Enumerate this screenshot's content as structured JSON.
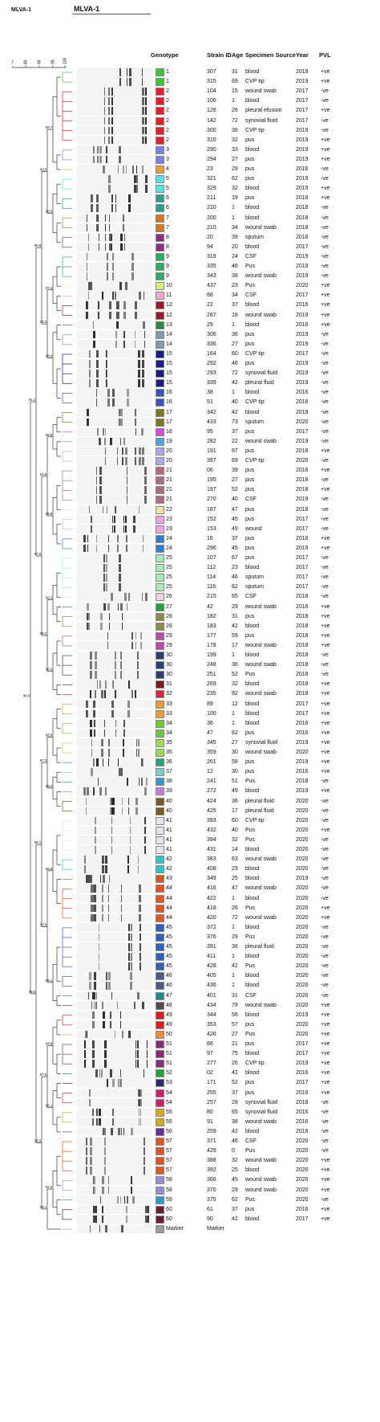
{
  "title_left": "MLVA-1",
  "title_main": "MLVA-1",
  "scale_ticks": [
    "70",
    "80",
    "90",
    "95",
    "100"
  ],
  "headers": {
    "genotype": "Genotype",
    "strain": "Strain ID",
    "age": "Age",
    "source": "Specimen Source",
    "year": "Year",
    "pvl": "PVL"
  },
  "node_labels": [
    {
      "text": "99.7"
    },
    {
      "text": "98.5"
    },
    {
      "text": "87.4"
    },
    {
      "text": "98.4"
    },
    {
      "text": "98.9"
    },
    {
      "text": "86.8"
    },
    {
      "text": "99.3"
    },
    {
      "text": "96.6"
    },
    {
      "text": "96.9"
    },
    {
      "text": "98.2"
    },
    {
      "text": "99.0"
    },
    {
      "text": "89.1"
    },
    {
      "text": "94.8"
    },
    {
      "text": "96.1"
    },
    {
      "text": "92.2"
    },
    {
      "text": "99.0"
    },
    {
      "text": "93.2"
    },
    {
      "text": "94.6"
    },
    {
      "text": "98.2"
    },
    {
      "text": "97.3"
    },
    {
      "text": "93.9"
    },
    {
      "text": "97.5"
    },
    {
      "text": "95.1"
    },
    {
      "text": "95.8"
    },
    {
      "text": "97.9"
    },
    {
      "text": "96.1"
    },
    {
      "text": "96.9"
    },
    {
      "text": "91.1"
    },
    {
      "text": "98.0"
    },
    {
      "text": "96.0"
    },
    {
      "text": "99.5"
    },
    {
      "text": "96.6"
    },
    {
      "text": "99.6"
    },
    {
      "text": "91.5"
    },
    {
      "text": "94.5"
    },
    {
      "text": "98.0"
    },
    {
      "text": "93.8"
    },
    {
      "text": "91.2"
    },
    {
      "text": "95.2"
    }
  ],
  "rows": [
    {
      "g": "1",
      "sid": "307",
      "age": "31",
      "src": "blood",
      "yr": "2019",
      "pvl": "+ve",
      "c": "#39c831"
    },
    {
      "g": "1",
      "sid": "315",
      "age": "69",
      "src": "CVP tip",
      "yr": "2019",
      "pvl": "+ve",
      "c": "#39c831"
    },
    {
      "g": "2",
      "sid": "104",
      "age": "15",
      "src": "wound swab",
      "yr": "2017",
      "pvl": "-ve",
      "c": "#ee1b2b"
    },
    {
      "g": "2",
      "sid": "106",
      "age": "1",
      "src": "blood",
      "yr": "2017",
      "pvl": "-ve",
      "c": "#ee1b2b"
    },
    {
      "g": "2",
      "sid": "126",
      "age": "26",
      "src": "pleural efusion",
      "yr": "2017",
      "pvl": "+ve",
      "c": "#ee1b2b"
    },
    {
      "g": "2",
      "sid": "142",
      "age": "72",
      "src": "synovial fluid",
      "yr": "2017",
      "pvl": "-ve",
      "c": "#ee1b2b"
    },
    {
      "g": "2",
      "sid": "300",
      "age": "36",
      "src": "CVP tip",
      "yr": "2019",
      "pvl": "-ve",
      "c": "#ee1b2b"
    },
    {
      "g": "2",
      "sid": "310",
      "age": "32",
      "src": "pus",
      "yr": "2019",
      "pvl": "+ve",
      "c": "#ee1b2b"
    },
    {
      "g": "3",
      "sid": "290",
      "age": "33",
      "src": "blood",
      "yr": "2019",
      "pvl": "+ve",
      "c": "#7b7fe8"
    },
    {
      "g": "3",
      "sid": "294",
      "age": "27",
      "src": "pus",
      "yr": "2019",
      "pvl": "+ve",
      "c": "#7b7fe8"
    },
    {
      "g": "4",
      "sid": "23",
      "age": "29",
      "src": "pus",
      "yr": "2016",
      "pvl": "-ve",
      "c": "#f29a30"
    },
    {
      "g": "5",
      "sid": "321",
      "age": "62",
      "src": "pus",
      "yr": "2019",
      "pvl": "-ve",
      "c": "#4fe6e8"
    },
    {
      "g": "5",
      "sid": "329",
      "age": "32",
      "src": "blood",
      "yr": "2019",
      "pvl": "+ve",
      "c": "#4fe6e8"
    },
    {
      "g": "6",
      "sid": "211",
      "age": "19",
      "src": "pus",
      "yr": "2018",
      "pvl": "+ve",
      "c": "#1fa393"
    },
    {
      "g": "6",
      "sid": "220",
      "age": "1",
      "src": "blood",
      "yr": "2018",
      "pvl": "-ve",
      "c": "#1fa393"
    },
    {
      "g": "7",
      "sid": "200",
      "age": "1",
      "src": "blood",
      "yr": "2018",
      "pvl": "-ve",
      "c": "#d9751f"
    },
    {
      "g": "7",
      "sid": "210",
      "age": "34",
      "src": "wound swab",
      "yr": "2018",
      "pvl": "-ve",
      "c": "#d9751f"
    },
    {
      "g": "8",
      "sid": "20",
      "age": "39",
      "src": "sputum",
      "yr": "2016",
      "pvl": "-ve",
      "c": "#8e2a82"
    },
    {
      "g": "8",
      "sid": "94",
      "age": "20",
      "src": "blood",
      "yr": "2017",
      "pvl": "-ve",
      "c": "#8e2a82"
    },
    {
      "g": "9",
      "sid": "319",
      "age": "24",
      "src": "CSF",
      "yr": "2019",
      "pvl": "-ve",
      "c": "#2fae63"
    },
    {
      "g": "9",
      "sid": "335",
      "age": "46",
      "src": "Pus",
      "yr": "2019",
      "pvl": "-ve",
      "c": "#2fae63"
    },
    {
      "g": "9",
      "sid": "343",
      "age": "38",
      "src": "wound swab",
      "yr": "2019",
      "pvl": "-ve",
      "c": "#2fae63"
    },
    {
      "g": "10",
      "sid": "437",
      "age": "23",
      "src": "Pus",
      "yr": "2020",
      "pvl": "+ve",
      "c": "#d6ef7a"
    },
    {
      "g": "11",
      "sid": "88",
      "age": "34",
      "src": "CSF",
      "yr": "2017",
      "pvl": "+ve",
      "c": "#f3a6d2"
    },
    {
      "g": "12",
      "sid": "22",
      "age": "37",
      "src": "blood",
      "yr": "2016",
      "pvl": "+ve",
      "c": "#a3162e"
    },
    {
      "g": "12",
      "sid": "287",
      "age": "18",
      "src": "wound swab",
      "yr": "2019",
      "pvl": "+ve",
      "c": "#a3162e"
    },
    {
      "g": "13",
      "sid": "29",
      "age": "1",
      "src": "blood",
      "yr": "2016",
      "pvl": "+ve",
      "c": "#2b8a3e"
    },
    {
      "g": "14",
      "sid": "306",
      "age": "36",
      "src": "pus",
      "yr": "2019",
      "pvl": "-ve",
      "c": "#7f9aaa"
    },
    {
      "g": "14",
      "sid": "336",
      "age": "27",
      "src": "pus",
      "yr": "2019",
      "pvl": "-ve",
      "c": "#7f9aaa"
    },
    {
      "g": "15",
      "sid": "164",
      "age": "60",
      "src": "CVP tip",
      "yr": "2017",
      "pvl": "-ve",
      "c": "#1a1a8c"
    },
    {
      "g": "15",
      "sid": "292",
      "age": "46",
      "src": "pus",
      "yr": "2019",
      "pvl": "-ve",
      "c": "#1a1a8c"
    },
    {
      "g": "15",
      "sid": "293",
      "age": "72",
      "src": "synovial fluid",
      "yr": "2019",
      "pvl": "-ve",
      "c": "#1a1a8c"
    },
    {
      "g": "15",
      "sid": "339",
      "age": "42",
      "src": "pleural fluid",
      "yr": "2019",
      "pvl": "-ve",
      "c": "#1a1a8c"
    },
    {
      "g": "16",
      "sid": "38",
      "age": "1",
      "src": "blood",
      "yr": "2016",
      "pvl": "-ve",
      "c": "#3a53c9"
    },
    {
      "g": "16",
      "sid": "51",
      "age": "40",
      "src": "CVP tip",
      "yr": "2016",
      "pvl": "-ve",
      "c": "#3a53c9"
    },
    {
      "g": "17",
      "sid": "342",
      "age": "42",
      "src": "blood",
      "yr": "2019",
      "pvl": "-ve",
      "c": "#7a7a1c"
    },
    {
      "g": "17",
      "sid": "433",
      "age": "73",
      "src": "sputum",
      "yr": "2020",
      "pvl": "-ve",
      "c": "#7a7a1c"
    },
    {
      "g": "18",
      "sid": "95",
      "age": "37",
      "src": "pus",
      "yr": "2017",
      "pvl": "-ve",
      "c": "#d84bd8"
    },
    {
      "g": "19",
      "sid": "282",
      "age": "22",
      "src": "wound swab",
      "yr": "2019",
      "pvl": "-ve",
      "c": "#49a6e0"
    },
    {
      "g": "20",
      "sid": "191",
      "age": "67",
      "src": "pus",
      "yr": "2018",
      "pvl": "+ve",
      "c": "#a9a9f0"
    },
    {
      "g": "20",
      "sid": "397",
      "age": "69",
      "src": "CVP tip",
      "yr": "2020",
      "pvl": "-ve",
      "c": "#a9a9f0"
    },
    {
      "g": "21",
      "sid": "06",
      "age": "39",
      "src": "pus",
      "yr": "2016",
      "pvl": "+ve",
      "c": "#b56a7a"
    },
    {
      "g": "21",
      "sid": "195",
      "age": "27",
      "src": "pus",
      "yr": "2018",
      "pvl": "-ve",
      "c": "#b56a7a"
    },
    {
      "g": "21",
      "sid": "197",
      "age": "52",
      "src": "pus",
      "yr": "2018",
      "pvl": "+ve",
      "c": "#b56a7a"
    },
    {
      "g": "21",
      "sid": "270",
      "age": "40",
      "src": "CSF",
      "yr": "2019",
      "pvl": "-ve",
      "c": "#b56a7a"
    },
    {
      "g": "22",
      "sid": "187",
      "age": "47",
      "src": "pus",
      "yr": "2018",
      "pvl": "-ve",
      "c": "#f0e2a0"
    },
    {
      "g": "23",
      "sid": "152",
      "age": "45",
      "src": "pus",
      "yr": "2017",
      "pvl": "-ve",
      "c": "#f2a0e8"
    },
    {
      "g": "23",
      "sid": "153",
      "age": "49",
      "src": "wound",
      "yr": "2017",
      "pvl": "-ve",
      "c": "#f2a0e8"
    },
    {
      "g": "24",
      "sid": "16",
      "age": "37",
      "src": "pus",
      "yr": "2016",
      "pvl": "+ve",
      "c": "#2f7fd6"
    },
    {
      "g": "24",
      "sid": "296",
      "age": "45",
      "src": "pus",
      "yr": "2019",
      "pvl": "+ve",
      "c": "#2f7fd6"
    },
    {
      "g": "25",
      "sid": "107",
      "age": "67",
      "src": "pus",
      "yr": "2017",
      "pvl": "-ve",
      "c": "#a6ecb9"
    },
    {
      "g": "25",
      "sid": "112",
      "age": "23",
      "src": "blood",
      "yr": "2017",
      "pvl": "-ve",
      "c": "#a6ecb9"
    },
    {
      "g": "25",
      "sid": "114",
      "age": "46",
      "src": "sputum",
      "yr": "2017",
      "pvl": "-ve",
      "c": "#a6ecb9"
    },
    {
      "g": "25",
      "sid": "116",
      "age": "62",
      "src": "sputum",
      "yr": "2017",
      "pvl": "-ve",
      "c": "#a6ecb9"
    },
    {
      "g": "26",
      "sid": "215",
      "age": "65",
      "src": "CSF",
      "yr": "2018",
      "pvl": "-ve",
      "c": "#f4d2d2"
    },
    {
      "g": "27",
      "sid": "42",
      "age": "29",
      "src": "wound swab",
      "yr": "2016",
      "pvl": "+ve",
      "c": "#18a34a"
    },
    {
      "g": "28",
      "sid": "182",
      "age": "31",
      "src": "pus",
      "yr": "2018",
      "pvl": "+ve",
      "c": "#8e8a48"
    },
    {
      "g": "28",
      "sid": "183",
      "age": "42",
      "src": "blood",
      "yr": "2018",
      "pvl": "+ve",
      "c": "#8e8a48"
    },
    {
      "g": "29",
      "sid": "177",
      "age": "59",
      "src": "pus",
      "yr": "2018",
      "pvl": "+ve",
      "c": "#b84ab0"
    },
    {
      "g": "29",
      "sid": "178",
      "age": "17",
      "src": "wound swab",
      "yr": "2018",
      "pvl": "+ve",
      "c": "#b84ab0"
    },
    {
      "g": "30",
      "sid": "199",
      "age": "1",
      "src": "blood",
      "yr": "2018",
      "pvl": "-ve",
      "c": "#2c3f78"
    },
    {
      "g": "30",
      "sid": "248",
      "age": "36",
      "src": "wound swab",
      "yr": "2018",
      "pvl": "-ve",
      "c": "#2c3f78"
    },
    {
      "g": "30",
      "sid": "251",
      "age": "52",
      "src": "Pus",
      "yr": "2018",
      "pvl": "-ve",
      "c": "#2c3f78"
    },
    {
      "g": "31",
      "sid": "269",
      "age": "32",
      "src": "blood",
      "yr": "2018",
      "pvl": "+ve",
      "c": "#7a1c1c"
    },
    {
      "g": "32",
      "sid": "235",
      "age": "82",
      "src": "wound swab",
      "yr": "2018",
      "pvl": "+ve",
      "c": "#d9264a"
    },
    {
      "g": "33",
      "sid": "89",
      "age": "12",
      "src": "blood",
      "yr": "2017",
      "pvl": "+ve",
      "c": "#f09c2a"
    },
    {
      "g": "33",
      "sid": "100",
      "age": "1",
      "src": "blood",
      "yr": "2017",
      "pvl": "+ve",
      "c": "#f09c2a"
    },
    {
      "g": "34",
      "sid": "36",
      "age": "1",
      "src": "blood",
      "yr": "2016",
      "pvl": "+ve",
      "c": "#6acb34"
    },
    {
      "g": "34",
      "sid": "47",
      "age": "62",
      "src": "pus",
      "yr": "2016",
      "pvl": "+ve",
      "c": "#6acb34"
    },
    {
      "g": "35",
      "sid": "345",
      "age": "27",
      "src": "synovial fluid",
      "yr": "2019",
      "pvl": "+ve",
      "c": "#9be04a"
    },
    {
      "g": "35",
      "sid": "359",
      "age": "30",
      "src": "wound swab",
      "yr": "2020",
      "pvl": "+ve",
      "c": "#9be04a"
    },
    {
      "g": "36",
      "sid": "261",
      "age": "58",
      "src": "pus",
      "yr": "2019",
      "pvl": "+ve",
      "c": "#1fa870"
    },
    {
      "g": "37",
      "sid": "12",
      "age": "30",
      "src": "pus",
      "yr": "2016",
      "pvl": "+ve",
      "c": "#7ad0c9"
    },
    {
      "g": "38",
      "sid": "241",
      "age": "51",
      "src": "Pus",
      "yr": "2018",
      "pvl": "-ve",
      "c": "#2a9acb"
    },
    {
      "g": "39",
      "sid": "272",
      "age": "49",
      "src": "blood",
      "yr": "2019",
      "pvl": "+ve",
      "c": "#c47ae0"
    },
    {
      "g": "40",
      "sid": "424",
      "age": "36",
      "src": "pleural fluid",
      "yr": "2020",
      "pvl": "-ve",
      "c": "#7a5a1c"
    },
    {
      "g": "40",
      "sid": "425",
      "age": "17",
      "src": "pleural fluid",
      "yr": "2020",
      "pvl": "-ve",
      "c": "#7a5a1c"
    },
    {
      "g": "41",
      "sid": "393",
      "age": "60",
      "src": "CVP tip",
      "yr": "2020",
      "pvl": "-ve",
      "c": "#e4e4f0"
    },
    {
      "g": "41",
      "sid": "432",
      "age": "40",
      "src": "Pus",
      "yr": "2020",
      "pvl": "+ve",
      "c": "#e4e4f0"
    },
    {
      "g": "41",
      "sid": "394",
      "age": "32",
      "src": "Pus",
      "yr": "2020",
      "pvl": "-ve",
      "c": "#e4e4f0"
    },
    {
      "g": "41",
      "sid": "431",
      "age": "14",
      "src": "blood",
      "yr": "2020",
      "pvl": "-ve",
      "c": "#e4e4f0"
    },
    {
      "g": "42",
      "sid": "383",
      "age": "63",
      "src": "wound swab",
      "yr": "2020",
      "pvl": "-ve",
      "c": "#29c4d6"
    },
    {
      "g": "42",
      "sid": "408",
      "age": "29",
      "src": "blood",
      "yr": "2020",
      "pvl": "-ve",
      "c": "#29c4d6"
    },
    {
      "g": "43",
      "sid": "349",
      "age": "25",
      "src": "blood",
      "yr": "2019",
      "pvl": "-ve",
      "c": "#cf5a1c"
    },
    {
      "g": "44",
      "sid": "416",
      "age": "47",
      "src": "wound swab",
      "yr": "2020",
      "pvl": "-ve",
      "c": "#e8531e"
    },
    {
      "g": "44",
      "sid": "422",
      "age": "1",
      "src": "blood",
      "yr": "2020",
      "pvl": "-ve",
      "c": "#e8531e"
    },
    {
      "g": "44",
      "sid": "418",
      "age": "26",
      "src": "Pus",
      "yr": "2020",
      "pvl": "+ve",
      "c": "#e8531e"
    },
    {
      "g": "44",
      "sid": "420",
      "age": "72",
      "src": "wound swab",
      "yr": "2020",
      "pvl": "+ve",
      "c": "#e8531e"
    },
    {
      "g": "45",
      "sid": "372",
      "age": "1",
      "src": "blood",
      "yr": "2020",
      "pvl": "-ve",
      "c": "#2f5fc4"
    },
    {
      "g": "45",
      "sid": "376",
      "age": "29",
      "src": "Pus",
      "yr": "2020",
      "pvl": "-ve",
      "c": "#2f5fc4"
    },
    {
      "g": "45",
      "sid": "391",
      "age": "36",
      "src": "pleural fluid",
      "yr": "2020",
      "pvl": "-ve",
      "c": "#2f5fc4"
    },
    {
      "g": "45",
      "sid": "411",
      "age": "1",
      "src": "blood",
      "yr": "2020",
      "pvl": "-ve",
      "c": "#2f5fc4"
    },
    {
      "g": "45",
      "sid": "428",
      "age": "42",
      "src": "Pus",
      "yr": "2020",
      "pvl": "-ve",
      "c": "#2f5fc4"
    },
    {
      "g": "46",
      "sid": "405",
      "age": "1",
      "src": "blood",
      "yr": "2020",
      "pvl": "-ve",
      "c": "#4a5a8c"
    },
    {
      "g": "46",
      "sid": "436",
      "age": "1",
      "src": "blood",
      "yr": "2020",
      "pvl": "-ve",
      "c": "#4a5a8c"
    },
    {
      "g": "47",
      "sid": "401",
      "age": "31",
      "src": "CSF",
      "yr": "2020",
      "pvl": "-ve",
      "c": "#1e8a8a"
    },
    {
      "g": "48",
      "sid": "434",
      "age": "79",
      "src": "wound swab",
      "yr": "2020",
      "pvl": "+ve",
      "c": "#5a4a4a"
    },
    {
      "g": "49",
      "sid": "344",
      "age": "56",
      "src": "blood",
      "yr": "2019",
      "pvl": "+ve",
      "c": "#e01c1c"
    },
    {
      "g": "49",
      "sid": "353",
      "age": "57",
      "src": "pus",
      "yr": "2020",
      "pvl": "+ve",
      "c": "#e01c1c"
    },
    {
      "g": "50",
      "sid": "426",
      "age": "27",
      "src": "Pus",
      "yr": "2020",
      "pvl": "+ve",
      "c": "#f08f3a"
    },
    {
      "g": "51",
      "sid": "86",
      "age": "21",
      "src": "pus",
      "yr": "2017",
      "pvl": "+ve",
      "c": "#8a2a7a"
    },
    {
      "g": "51",
      "sid": "97",
      "age": "75",
      "src": "blood",
      "yr": "2017",
      "pvl": "+ve",
      "c": "#8a2a7a"
    },
    {
      "g": "51",
      "sid": "277",
      "age": "26",
      "src": "CVP tip",
      "yr": "2019",
      "pvl": "+ve",
      "c": "#8a2a7a"
    },
    {
      "g": "52",
      "sid": "02",
      "age": "42",
      "src": "blood",
      "yr": "2016",
      "pvl": "+ve",
      "c": "#1fa33a"
    },
    {
      "g": "53",
      "sid": "171",
      "age": "52",
      "src": "pus",
      "yr": "2017",
      "pvl": "+ve",
      "c": "#2a2a6a"
    },
    {
      "g": "54",
      "sid": "255",
      "age": "37",
      "src": "pus",
      "yr": "2018",
      "pvl": "+ve",
      "c": "#d81c6a"
    },
    {
      "g": "54",
      "sid": "257",
      "age": "28",
      "src": "synovial fluid",
      "yr": "2018",
      "pvl": "-ve",
      "c": "#d81c6a"
    },
    {
      "g": "55",
      "sid": "80",
      "age": "65",
      "src": "synovial fluid",
      "yr": "2016",
      "pvl": "-ve",
      "c": "#d9a81c"
    },
    {
      "g": "55",
      "sid": "91",
      "age": "38",
      "src": "wound swab",
      "yr": "2016",
      "pvl": "-ve",
      "c": "#d9a81c"
    },
    {
      "g": "56",
      "sid": "259",
      "age": "42",
      "src": "blood",
      "yr": "2018",
      "pvl": "-ve",
      "c": "#6a2aa0"
    },
    {
      "g": "57",
      "sid": "371",
      "age": "46",
      "src": "CSF",
      "yr": "2020",
      "pvl": "-ve",
      "c": "#e8531e"
    },
    {
      "g": "57",
      "sid": "429",
      "age": "0",
      "src": "Pus",
      "yr": "2020",
      "pvl": "-ve",
      "c": "#e8531e"
    },
    {
      "g": "57",
      "sid": "388",
      "age": "32",
      "src": "wound swab",
      "yr": "2020",
      "pvl": "+ve",
      "c": "#e8531e"
    },
    {
      "g": "57",
      "sid": "392",
      "age": "25",
      "src": "blood",
      "yr": "2020",
      "pvl": "+ve",
      "c": "#e8531e"
    },
    {
      "g": "58",
      "sid": "366",
      "age": "45",
      "src": "wound swab",
      "yr": "2020",
      "pvl": "+ve",
      "c": "#9a8ae0"
    },
    {
      "g": "58",
      "sid": "370",
      "age": "29",
      "src": "wound swab",
      "yr": "2020",
      "pvl": "+ve",
      "c": "#9a8ae0"
    },
    {
      "g": "59",
      "sid": "375",
      "age": "62",
      "src": "Pus",
      "yr": "2020",
      "pvl": "-ve",
      "c": "#2a9ad6"
    },
    {
      "g": "60",
      "sid": "61",
      "age": "37",
      "src": "pus",
      "yr": "2016",
      "pvl": "+ve",
      "c": "#6a1c3a"
    },
    {
      "g": "60",
      "sid": "90",
      "age": "42",
      "src": "blood",
      "yr": "2017",
      "pvl": "+ve",
      "c": "#6a1c3a"
    },
    {
      "g": "Marker",
      "sid": "Marker",
      "age": "",
      "src": "",
      "yr": "",
      "pvl": "",
      "c": "#9a9a9a"
    }
  ]
}
